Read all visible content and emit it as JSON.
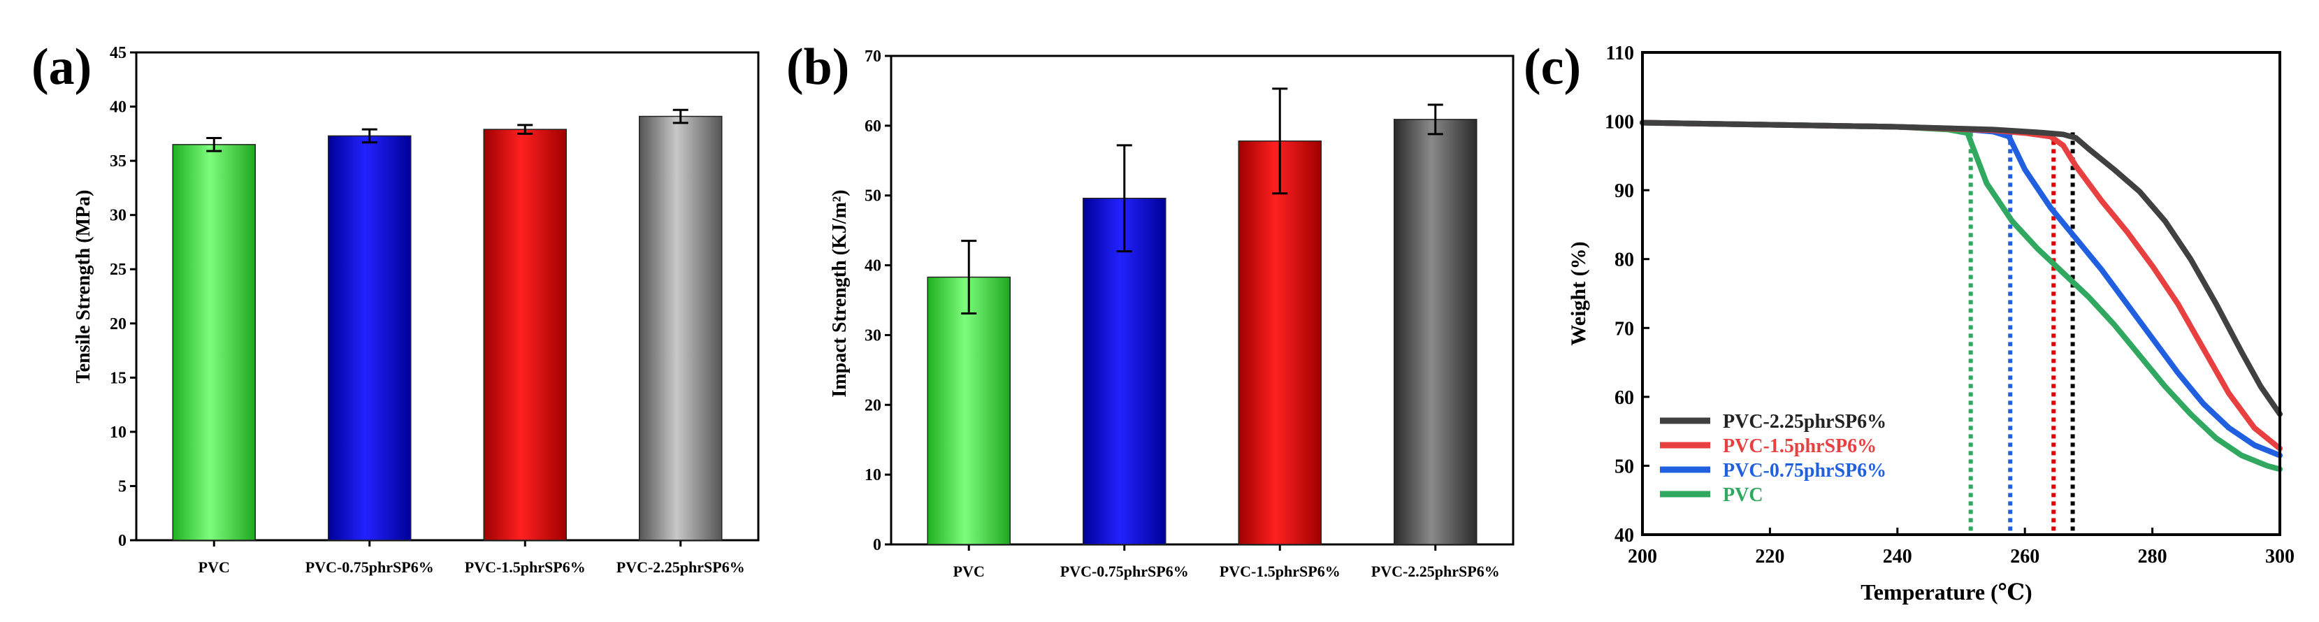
{
  "chart_data": [
    {
      "panel_label": "(a)",
      "type": "bar",
      "ylabel": "Tensile Strength (MPa)",
      "xlabel": "",
      "ylim": [
        0,
        45
      ],
      "yticks": [
        0,
        5,
        10,
        15,
        20,
        25,
        30,
        35,
        40,
        45
      ],
      "categories": [
        "PVC",
        "PVC-0.75phrSP6%",
        "PVC-1.5phrSP6%",
        "PVC-2.25phrSP6%"
      ],
      "values": [
        36.5,
        37.3,
        37.9,
        39.1
      ],
      "errors": [
        0.6,
        0.6,
        0.4,
        0.6
      ],
      "colors": [
        "#3ee03e",
        "#0000e0",
        "#e00000",
        "#7a7a7a"
      ],
      "grid": false
    },
    {
      "panel_label": "(b)",
      "type": "bar",
      "ylabel": "Impact Strength (KJ/m²)",
      "xlabel": "",
      "ylim": [
        0,
        70
      ],
      "yticks": [
        0,
        10,
        20,
        30,
        40,
        50,
        60,
        70
      ],
      "categories": [
        "PVC",
        "PVC-0.75phrSP6%",
        "PVC-1.5phrSP6%",
        "PVC-2.25phrSP6%"
      ],
      "values": [
        38.3,
        49.6,
        57.8,
        60.9
      ],
      "errors": [
        5.2,
        7.6,
        7.5,
        2.1
      ],
      "colors": [
        "#3ee03e",
        "#0000e0",
        "#e00000",
        "#4a4a4a"
      ],
      "grid": false
    },
    {
      "panel_label": "(c)",
      "type": "line",
      "xlabel": "Temperature (℃)",
      "ylabel": "Weight (%)",
      "xlim": [
        200,
        300
      ],
      "ylim": [
        40,
        110
      ],
      "xticks": [
        200,
        220,
        240,
        260,
        280,
        300
      ],
      "yticks": [
        40,
        50,
        60,
        70,
        80,
        90,
        100,
        110
      ],
      "legend_position": "bottom-left",
      "grid": false,
      "series": [
        {
          "name": "PVC-2.25phrSP6%",
          "color": "#404040",
          "x": [
            200,
            220,
            240,
            255,
            262,
            266,
            268,
            270,
            274,
            278,
            282,
            286,
            290,
            294,
            297,
            300
          ],
          "y": [
            99.8,
            99.5,
            99.2,
            98.8,
            98.4,
            98.1,
            97.6,
            96.0,
            93.0,
            89.8,
            85.5,
            80.0,
            73.5,
            66.5,
            61.5,
            57.5
          ]
        },
        {
          "name": "PVC-1.5phrSP6%",
          "color": "#e84040",
          "x": [
            200,
            220,
            240,
            255,
            260,
            264,
            266,
            268,
            272,
            276,
            280,
            284,
            288,
            292,
            296,
            300
          ],
          "y": [
            99.8,
            99.5,
            99.2,
            98.7,
            98.3,
            97.8,
            96.5,
            93.5,
            88.5,
            84.0,
            79.0,
            73.5,
            67.0,
            60.5,
            55.5,
            52.5
          ]
        },
        {
          "name": "PVC-0.75phrSP6%",
          "color": "#2060e0",
          "x": [
            200,
            220,
            240,
            250,
            255,
            257.5,
            260,
            264,
            268,
            272,
            276,
            280,
            284,
            288,
            292,
            296,
            300
          ],
          "y": [
            99.8,
            99.5,
            99.2,
            98.9,
            98.5,
            97.8,
            93.0,
            87.5,
            83.0,
            78.5,
            73.5,
            68.5,
            63.5,
            59.0,
            55.5,
            53.0,
            51.5
          ]
        },
        {
          "name": "PVC",
          "color": "#30a860",
          "x": [
            200,
            220,
            240,
            248,
            251,
            254,
            258,
            262,
            266,
            270,
            274,
            278,
            282,
            286,
            290,
            294,
            298,
            300
          ],
          "y": [
            99.8,
            99.5,
            99.2,
            98.8,
            98.3,
            91.0,
            85.5,
            81.5,
            78.0,
            74.5,
            70.5,
            66.0,
            61.5,
            57.5,
            54.0,
            51.5,
            50.0,
            49.5
          ]
        }
      ],
      "vlines": [
        {
          "x": 251.5,
          "color": "#30a860"
        },
        {
          "x": 257.7,
          "color": "#2060e0"
        },
        {
          "x": 264.5,
          "color": "#e00000"
        },
        {
          "x": 267.5,
          "color": "#000000"
        }
      ]
    }
  ]
}
